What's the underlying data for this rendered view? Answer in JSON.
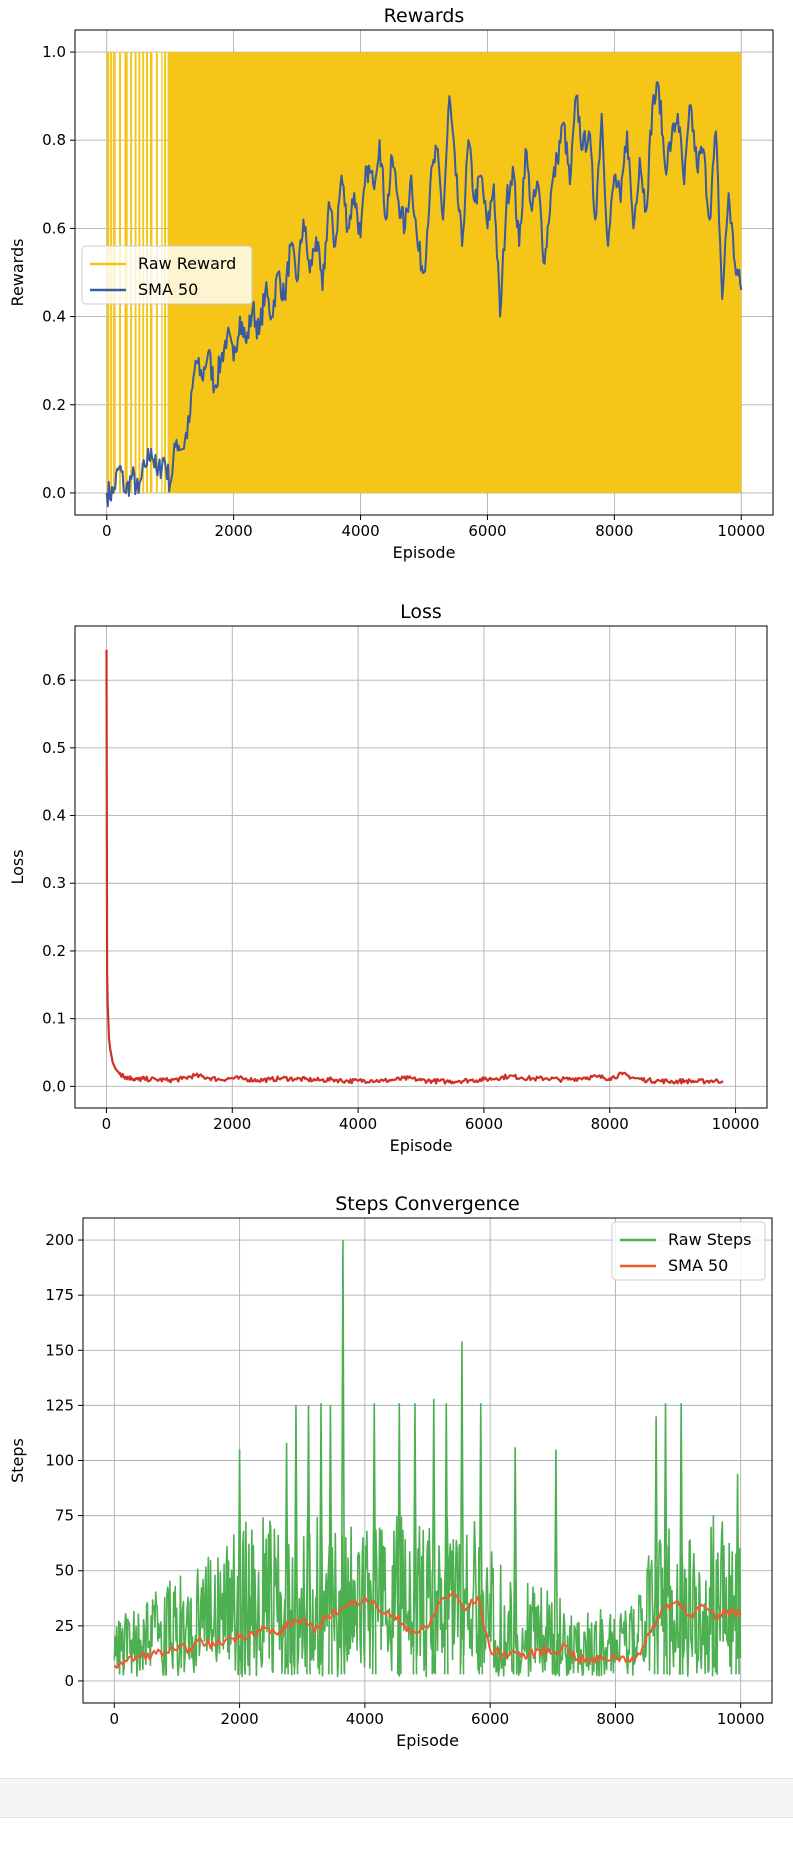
{
  "chart_data": [
    {
      "type": "line",
      "title": "Rewards",
      "xlabel": "Episode",
      "ylabel": "Rewards",
      "xlim": [
        -500,
        10500
      ],
      "ylim": [
        -0.05,
        1.05
      ],
      "xticks": [
        0,
        2000,
        4000,
        6000,
        8000,
        10000
      ],
      "yticks": [
        0.0,
        0.2,
        0.4,
        0.6,
        0.8,
        1.0
      ],
      "xtick_labels": [
        "0",
        "2000",
        "4000",
        "6000",
        "8000",
        "10000"
      ],
      "ytick_labels": [
        "0.0",
        "0.2",
        "0.4",
        "0.6",
        "0.8",
        "1.0"
      ],
      "grid": true,
      "legend": "center-left",
      "series": [
        {
          "name": "Raw Reward",
          "color": "#f5c518",
          "style": "band",
          "description_values": [
            0,
            1
          ],
          "x": [
            0,
            10000
          ],
          "low": [
            0,
            0
          ],
          "high": [
            1,
            1
          ]
        },
        {
          "name": "SMA 50",
          "color": "#3a5ba0",
          "x": [
            0,
            100,
            200,
            300,
            400,
            500,
            600,
            700,
            800,
            900,
            1000,
            1100,
            1200,
            1300,
            1400,
            1500,
            1600,
            1700,
            1800,
            1900,
            2000,
            2100,
            2200,
            2300,
            2400,
            2500,
            2600,
            2700,
            2800,
            2900,
            3000,
            3100,
            3200,
            3300,
            3400,
            3500,
            3600,
            3700,
            3800,
            3900,
            4000,
            4100,
            4200,
            4300,
            4400,
            4500,
            4600,
            4700,
            4800,
            4900,
            5000,
            5100,
            5200,
            5300,
            5400,
            5500,
            5600,
            5700,
            5800,
            5900,
            6000,
            6100,
            6200,
            6300,
            6400,
            6500,
            6600,
            6700,
            6800,
            6900,
            7000,
            7100,
            7200,
            7300,
            7400,
            7500,
            7600,
            7700,
            7800,
            7900,
            8000,
            8100,
            8200,
            8300,
            8400,
            8500,
            8600,
            8700,
            8800,
            8900,
            9000,
            9100,
            9200,
            9300,
            9400,
            9500,
            9600,
            9700,
            9800,
            9900,
            10000
          ],
          "values": [
            0.0,
            0.0,
            0.06,
            0.0,
            0.04,
            0.0,
            0.06,
            0.1,
            0.04,
            0.08,
            0.02,
            0.12,
            0.1,
            0.16,
            0.3,
            0.26,
            0.32,
            0.24,
            0.3,
            0.36,
            0.3,
            0.4,
            0.34,
            0.42,
            0.36,
            0.46,
            0.4,
            0.5,
            0.44,
            0.56,
            0.48,
            0.62,
            0.5,
            0.58,
            0.46,
            0.66,
            0.56,
            0.72,
            0.6,
            0.68,
            0.58,
            0.74,
            0.7,
            0.8,
            0.62,
            0.76,
            0.66,
            0.6,
            0.72,
            0.56,
            0.5,
            0.7,
            0.78,
            0.62,
            0.9,
            0.72,
            0.56,
            0.8,
            0.66,
            0.72,
            0.6,
            0.7,
            0.4,
            0.66,
            0.74,
            0.56,
            0.78,
            0.64,
            0.7,
            0.52,
            0.68,
            0.76,
            0.84,
            0.7,
            0.9,
            0.78,
            0.82,
            0.62,
            0.86,
            0.56,
            0.72,
            0.66,
            0.82,
            0.6,
            0.76,
            0.64,
            0.88,
            0.92,
            0.74,
            0.8,
            0.86,
            0.7,
            0.88,
            0.74,
            0.78,
            0.62,
            0.82,
            0.44,
            0.68,
            0.52,
            0.46
          ]
        }
      ]
    },
    {
      "type": "line",
      "title": "Loss",
      "xlabel": "Episode",
      "ylabel": "Loss",
      "xlim": [
        -500,
        10500
      ],
      "ylim": [
        -0.032,
        0.68
      ],
      "xticks": [
        0,
        2000,
        4000,
        6000,
        8000,
        10000
      ],
      "yticks": [
        0.0,
        0.1,
        0.2,
        0.3,
        0.4,
        0.5,
        0.6
      ],
      "xtick_labels": [
        "0",
        "2000",
        "4000",
        "6000",
        "8000",
        "10000"
      ],
      "ytick_labels": [
        "0.0",
        "0.1",
        "0.2",
        "0.3",
        "0.4",
        "0.5",
        "0.6"
      ],
      "grid": true,
      "series": [
        {
          "color": "#d03028",
          "x": [
            0,
            10,
            20,
            40,
            60,
            80,
            100,
            150,
            200,
            250,
            300,
            400,
            500,
            600,
            800,
            1000,
            1200,
            1400,
            1600,
            1800,
            2000,
            2200,
            2400,
            2600,
            2800,
            3000,
            3200,
            3400,
            3600,
            3800,
            4000,
            4200,
            4400,
            4600,
            4800,
            5000,
            5200,
            5400,
            5600,
            5800,
            6000,
            6200,
            6400,
            6600,
            6800,
            7000,
            7200,
            7400,
            7600,
            7800,
            8000,
            8200,
            8400,
            8600,
            8800,
            9000,
            9200,
            9400,
            9600,
            9800
          ],
          "values": [
            0.645,
            0.17,
            0.12,
            0.07,
            0.055,
            0.045,
            0.035,
            0.025,
            0.02,
            0.016,
            0.014,
            0.012,
            0.01,
            0.011,
            0.01,
            0.009,
            0.011,
            0.016,
            0.013,
            0.01,
            0.012,
            0.011,
            0.009,
            0.01,
            0.012,
            0.011,
            0.01,
            0.009,
            0.01,
            0.008,
            0.008,
            0.009,
            0.008,
            0.01,
            0.012,
            0.009,
            0.008,
            0.007,
            0.008,
            0.009,
            0.01,
            0.012,
            0.015,
            0.013,
            0.011,
            0.012,
            0.01,
            0.011,
            0.013,
            0.014,
            0.012,
            0.018,
            0.012,
            0.009,
            0.008,
            0.007,
            0.008,
            0.007,
            0.008,
            0.008
          ]
        }
      ]
    },
    {
      "type": "line",
      "title": "Steps Convergence",
      "xlabel": "Episode",
      "ylabel": "Steps",
      "xlim": [
        -500,
        10500
      ],
      "ylim": [
        -10,
        210
      ],
      "xticks": [
        0,
        2000,
        4000,
        6000,
        8000,
        10000
      ],
      "yticks": [
        0,
        25,
        50,
        75,
        100,
        125,
        150,
        175,
        200
      ],
      "xtick_labels": [
        "0",
        "2000",
        "4000",
        "6000",
        "8000",
        "10000"
      ],
      "ytick_labels": [
        "0",
        "25",
        "50",
        "75",
        "100",
        "125",
        "150",
        "175",
        "200"
      ],
      "grid": true,
      "legend": "top-right",
      "series": [
        {
          "name": "Raw Steps",
          "color": "#4caf50",
          "style": "band",
          "x": [
            0,
            250,
            500,
            750,
            1000,
            1250,
            1500,
            1750,
            2000,
            2250,
            2500,
            2750,
            3000,
            3250,
            3500,
            3750,
            4000,
            4250,
            4500,
            4750,
            5000,
            5250,
            5500,
            5750,
            6000,
            6250,
            6500,
            6750,
            7000,
            7250,
            7500,
            7750,
            8000,
            8250,
            8500,
            8750,
            9000,
            9250,
            9500,
            9750,
            10000
          ],
          "low": [
            2,
            2,
            2,
            2,
            2,
            2,
            2,
            2,
            2,
            2,
            2,
            2,
            2,
            2,
            2,
            2,
            2,
            2,
            2,
            2,
            2,
            2,
            2,
            2,
            2,
            2,
            2,
            2,
            2,
            2,
            2,
            2,
            2,
            2,
            2,
            2,
            2,
            2,
            2,
            2,
            2
          ],
          "high": [
            25,
            35,
            45,
            40,
            50,
            55,
            60,
            65,
            70,
            75,
            75,
            75,
            75,
            75,
            75,
            75,
            75,
            75,
            75,
            75,
            75,
            75,
            75,
            75,
            60,
            50,
            45,
            45,
            40,
            35,
            30,
            35,
            30,
            35,
            55,
            70,
            75,
            75,
            75,
            75,
            60
          ],
          "peaks": [
            [
              3650,
              200
            ],
            [
              5550,
              154
            ],
            [
              5100,
              128
            ],
            [
              5300,
              126
            ],
            [
              3300,
              126
            ],
            [
              2000,
              105
            ],
            [
              3100,
              125
            ],
            [
              2750,
              108
            ],
            [
              4550,
              126
            ],
            [
              4800,
              126
            ],
            [
              5850,
              126
            ],
            [
              6400,
              106
            ],
            [
              7050,
              105
            ],
            [
              8650,
              120
            ],
            [
              8800,
              126
            ],
            [
              9050,
              126
            ],
            [
              9950,
              94
            ],
            [
              2900,
              125
            ],
            [
              3450,
              125
            ],
            [
              4150,
              126
            ]
          ]
        },
        {
          "name": "SMA 50",
          "color": "#f05a30",
          "x": [
            0,
            200,
            400,
            600,
            800,
            1000,
            1200,
            1400,
            1600,
            1800,
            2000,
            2200,
            2400,
            2600,
            2800,
            3000,
            3200,
            3400,
            3600,
            3800,
            4000,
            4200,
            4400,
            4600,
            4800,
            5000,
            5200,
            5400,
            5600,
            5800,
            6000,
            6200,
            6400,
            6600,
            6800,
            7000,
            7200,
            7400,
            7600,
            7800,
            8000,
            8200,
            8400,
            8600,
            8800,
            9000,
            9200,
            9400,
            9600,
            9800,
            10000
          ],
          "values": [
            7,
            9,
            11,
            12,
            13,
            14,
            15,
            18,
            16,
            19,
            20,
            22,
            24,
            21,
            26,
            28,
            22,
            30,
            32,
            35,
            38,
            33,
            30,
            26,
            22,
            24,
            36,
            40,
            32,
            38,
            14,
            12,
            13,
            11,
            14,
            13,
            16,
            10,
            9,
            10,
            11,
            10,
            12,
            25,
            34,
            36,
            30,
            34,
            28,
            32,
            30
          ]
        }
      ]
    }
  ]
}
